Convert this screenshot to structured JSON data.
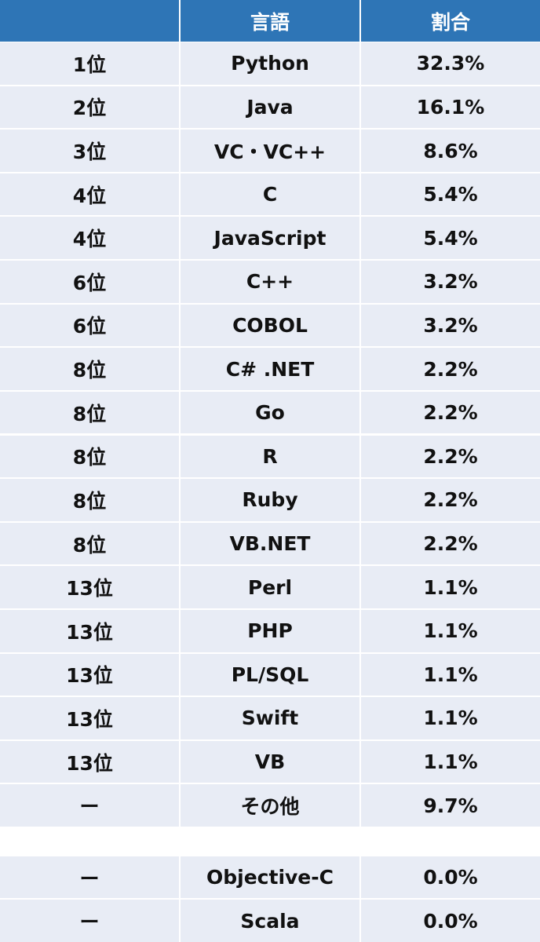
{
  "table": {
    "header": [
      "言語",
      "割合"
    ],
    "rows": [
      [
        "1位",
        "Python",
        "32.3%"
      ],
      [
        "2位",
        "Java",
        "16.1%"
      ],
      [
        "3位",
        "VC・VC++",
        "8.6%"
      ],
      [
        "4位",
        "C",
        "5.4%"
      ],
      [
        "4位",
        "JavaScript",
        "5.4%"
      ],
      [
        "6位",
        "C++",
        "3.2%"
      ],
      [
        "6位",
        "COBOL",
        "3.2%"
      ],
      [
        "8位",
        "C# .NET",
        "2.2%"
      ],
      [
        "8位",
        "Go",
        "2.2%"
      ],
      [
        "8位",
        "R",
        "2.2%"
      ],
      [
        "8位",
        "Ruby",
        "2.2%"
      ],
      [
        "8位",
        "VB.NET",
        "2.2%"
      ],
      [
        "13位",
        "Perl",
        "1.1%"
      ],
      [
        "13位",
        "PHP",
        "1.1%"
      ],
      [
        "13位",
        "PL/SQL",
        "1.1%"
      ],
      [
        "13位",
        "Swift",
        "1.1%"
      ],
      [
        "13位",
        "VB",
        "1.1%"
      ],
      [
        "ー",
        "その他",
        "9.7%"
      ]
    ]
  },
  "extra_rows": [
    [
      "ー",
      "Objective-C",
      "0.0%"
    ],
    [
      "ー",
      "Scala",
      "0.0%"
    ]
  ]
}
